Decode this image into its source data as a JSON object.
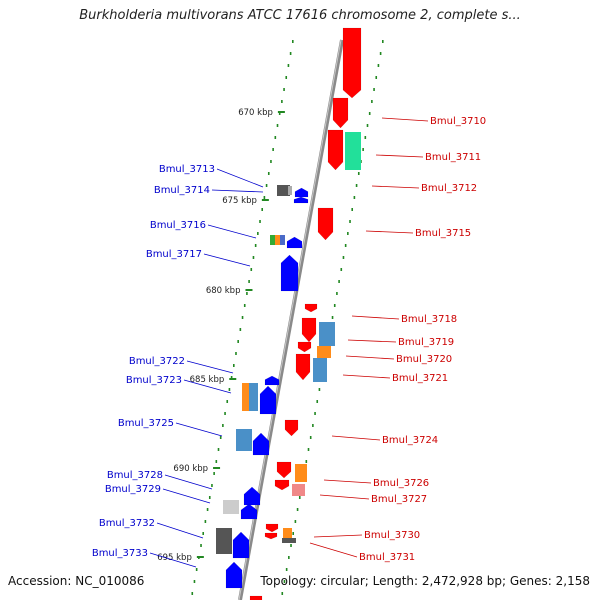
{
  "title": "Burkholderia multivorans ATCC 17616 chromosome 2, complete s...",
  "footer": {
    "accession": "Accession: NC_010086",
    "topology": "Topology: circular; Length: 2,472,928 bp; Genes: 2,158"
  },
  "ticks": [
    {
      "label": "670 kbp",
      "pos": 670
    },
    {
      "label": "675 kbp",
      "pos": 675
    },
    {
      "label": "680 kbp",
      "pos": 680
    },
    {
      "label": "685 kbp",
      "pos": 685
    },
    {
      "label": "690 kbp",
      "pos": 690
    },
    {
      "label": "695 kbp",
      "pos": 695
    }
  ],
  "colors": {
    "forward": "#ff0000",
    "reverse": "#0000ff",
    "forward_label": "#cc0000",
    "reverse_label": "#0000cc",
    "backbone": "#888888",
    "dots": "#228822"
  },
  "genes": [
    {
      "name": "Bmul_3710",
      "strand": "forward"
    },
    {
      "name": "Bmul_3711",
      "strand": "forward"
    },
    {
      "name": "Bmul_3712",
      "strand": "forward"
    },
    {
      "name": "Bmul_3713",
      "strand": "reverse"
    },
    {
      "name": "Bmul_3714",
      "strand": "reverse"
    },
    {
      "name": "Bmul_3715",
      "strand": "forward"
    },
    {
      "name": "Bmul_3716",
      "strand": "reverse"
    },
    {
      "name": "Bmul_3717",
      "strand": "reverse"
    },
    {
      "name": "Bmul_3718",
      "strand": "forward"
    },
    {
      "name": "Bmul_3719",
      "strand": "forward"
    },
    {
      "name": "Bmul_3720",
      "strand": "forward"
    },
    {
      "name": "Bmul_3721",
      "strand": "forward"
    },
    {
      "name": "Bmul_3722",
      "strand": "reverse"
    },
    {
      "name": "Bmul_3723",
      "strand": "reverse"
    },
    {
      "name": "Bmul_3724",
      "strand": "forward"
    },
    {
      "name": "Bmul_3725",
      "strand": "reverse"
    },
    {
      "name": "Bmul_3726",
      "strand": "forward"
    },
    {
      "name": "Bmul_3727",
      "strand": "forward"
    },
    {
      "name": "Bmul_3728",
      "strand": "reverse"
    },
    {
      "name": "Bmul_3729",
      "strand": "reverse"
    },
    {
      "name": "Bmul_3730",
      "strand": "forward"
    },
    {
      "name": "Bmul_3731",
      "strand": "forward"
    },
    {
      "name": "Bmul_3732",
      "strand": "reverse"
    },
    {
      "name": "Bmul_3733",
      "strand": "reverse"
    }
  ]
}
